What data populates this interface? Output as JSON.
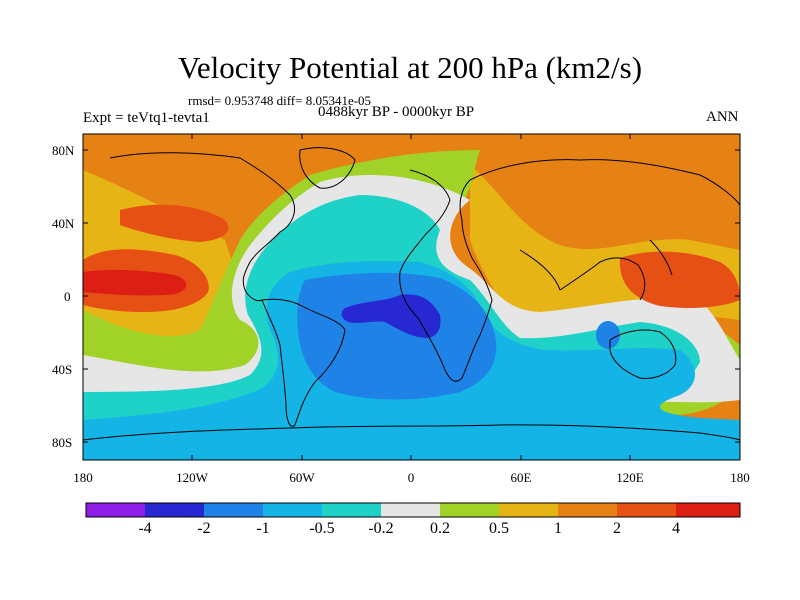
{
  "title": "Velocity Potential at 200 hPa (km2/s)",
  "stats_line": "rmsd= 0.953748 diff= 8.05341e-05",
  "period_line": "0488kyr BP - 0000kyr BP",
  "experiment_label": "Expt = teVtq1-tevta1",
  "season_label": "ANN",
  "lat_labels": [
    "80N",
    "40N",
    "0",
    "40S",
    "80S"
  ],
  "lon_labels": [
    "180",
    "120W",
    "60W",
    "0",
    "60E",
    "120E",
    "180"
  ],
  "colorbar": {
    "colors": [
      "#8c1ee6",
      "#2828d2",
      "#1e82e6",
      "#14b4e6",
      "#1ed2c8",
      "#e6e6e6",
      "#a0d228",
      "#e6b414",
      "#e68214",
      "#e65014",
      "#dc1e14"
    ],
    "labels": [
      "-4",
      "-2",
      "-1",
      "-0.5",
      "-0.2",
      "0.2",
      "0.5",
      "1",
      "2",
      "4"
    ]
  }
}
